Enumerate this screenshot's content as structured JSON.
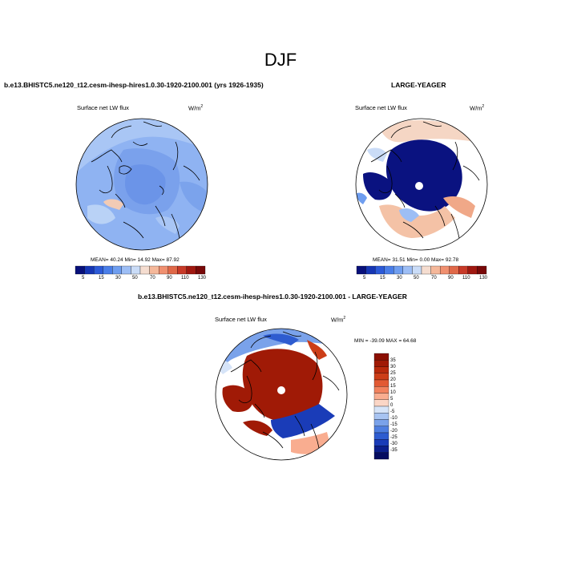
{
  "figure_title": "DJF",
  "panels": [
    {
      "title": "b.e13.BHISTC5.ne120_t12.cesm-ihesp-hires1.0.30-1920-2100.001 (yrs 1926-1935)",
      "variable": "Surface net LW flux",
      "units": "W/m",
      "units_exp": "2",
      "stats": "MEAN=  40.24  Min=  14.92  Max=  87.92",
      "colorbar_labels": [
        "5",
        "15",
        "30",
        "50",
        "70",
        "90",
        "110",
        "130"
      ]
    },
    {
      "title": "LARGE-YEAGER",
      "variable": "Surface net LW flux",
      "units": "W/m",
      "units_exp": "2",
      "stats": "MEAN=  31.51  Min=   0.00  Max=  92.78",
      "colorbar_labels": [
        "5",
        "15",
        "30",
        "50",
        "70",
        "90",
        "110",
        "130"
      ]
    },
    {
      "title": "b.e13.BHISTC5.ne120_t12.cesm-ihesp-hires1.0.30-1920-2100.001 - LARGE-YEAGER",
      "variable": "Surface net LW flux",
      "units": "W/m",
      "units_exp": "2",
      "stats": "MIN = -39.09 MAX =  64.68",
      "colorbar_labels": [
        "35",
        "30",
        "25",
        "20",
        "15",
        "10",
        "5",
        "0",
        "-5",
        "-10",
        "-15",
        "-20",
        "-25",
        "-30",
        "-35"
      ]
    }
  ],
  "colors": {
    "abs_scale": [
      "#08107a",
      "#1636b4",
      "#2c5ad8",
      "#4a7ee8",
      "#6f9ef0",
      "#9dbef5",
      "#cadcf7",
      "#f5ddd0",
      "#f5b89a",
      "#f09070",
      "#e06848",
      "#c83a28",
      "#a01810",
      "#780808"
    ],
    "diff_scale": [
      "#8b0f02",
      "#a01a06",
      "#b82a0c",
      "#cc3e18",
      "#e25a34",
      "#f2825e",
      "#f9ad90",
      "#fbd6c6",
      "#d6e4f8",
      "#a8c4f2",
      "#7aa2ea",
      "#4e7ee0",
      "#2e5cd0",
      "#1a3cb8",
      "#0c1f8c",
      "#050c60"
    ]
  }
}
